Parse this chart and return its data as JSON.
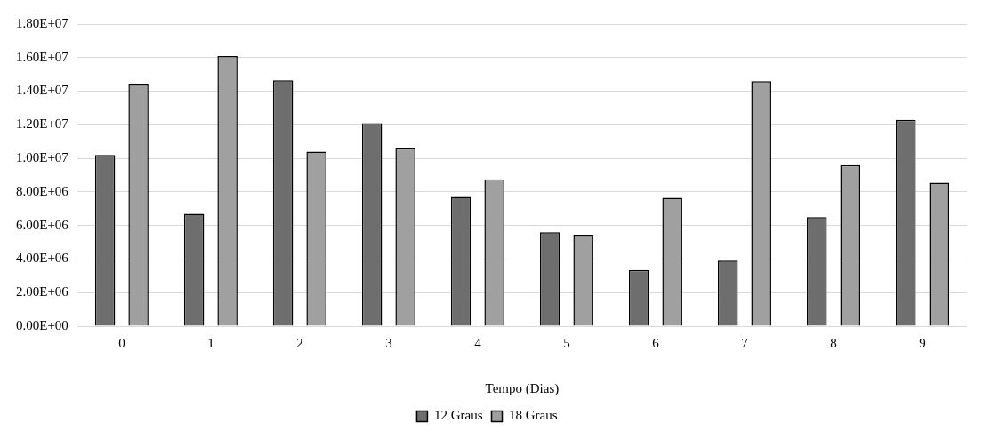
{
  "chart_data": {
    "type": "bar",
    "xlabel": "Tempo (Dias)",
    "categories": [
      "0",
      "1",
      "2",
      "3",
      "4",
      "5",
      "6",
      "7",
      "8",
      "9"
    ],
    "series": [
      {
        "name": "12 Graus",
        "color": "#6e6e6e",
        "values": [
          10200000,
          6700000,
          14650000,
          12100000,
          7700000,
          5600000,
          3350000,
          3900000,
          6500000,
          12300000
        ]
      },
      {
        "name": "18 Graus",
        "color": "#a0a0a0",
        "values": [
          14400000,
          16100000,
          10400000,
          10600000,
          8750000,
          5400000,
          7650000,
          14600000,
          9600000,
          8550000
        ]
      }
    ],
    "ylim": [
      0,
      18000000
    ],
    "yticks": [
      {
        "value": 0,
        "label": "0.00E+00"
      },
      {
        "value": 2000000,
        "label": "2.00E+06"
      },
      {
        "value": 4000000,
        "label": "4.00E+06"
      },
      {
        "value": 6000000,
        "label": "6.00E+06"
      },
      {
        "value": 8000000,
        "label": "8.00E+06"
      },
      {
        "value": 10000000,
        "label": "1.00E+07"
      },
      {
        "value": 12000000,
        "label": "1.20E+07"
      },
      {
        "value": 14000000,
        "label": "1.40E+07"
      },
      {
        "value": 16000000,
        "label": "1.60E+07"
      },
      {
        "value": 18000000,
        "label": "1.80E+07"
      }
    ],
    "grid": "y",
    "legend": "bottom"
  }
}
